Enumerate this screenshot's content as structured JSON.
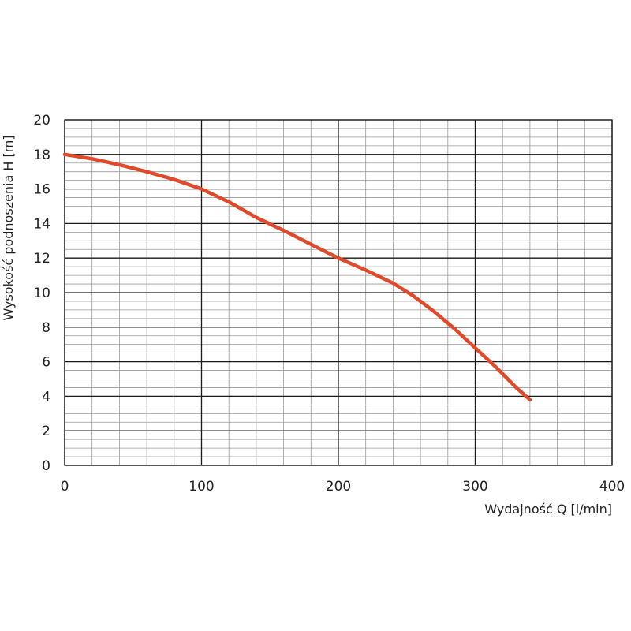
{
  "chart_data": {
    "type": "line",
    "xlabel": "Wydajność Q [l/min]",
    "ylabel": "Wysokość podnoszenia H [m]",
    "xlim": [
      0,
      400
    ],
    "ylim": [
      0,
      20
    ],
    "x_ticks": [
      "0",
      "100",
      "200",
      "300",
      "400"
    ],
    "y_ticks": [
      "0",
      "2",
      "4",
      "6",
      "8",
      "10",
      "12",
      "14",
      "16",
      "18",
      "20"
    ],
    "x_minor_step": 20,
    "y_minor_step": 0.5,
    "grid": true,
    "legend": false,
    "series": [
      {
        "color": "#e04a2a",
        "x": [
          0,
          20,
          40,
          60,
          80,
          100,
          120,
          140,
          160,
          180,
          200,
          220,
          240,
          255,
          270,
          285,
          300,
          315,
          330,
          340
        ],
        "y": [
          18.0,
          17.75,
          17.4,
          17.0,
          16.55,
          16.0,
          15.25,
          14.35,
          13.6,
          12.8,
          12.0,
          11.3,
          10.55,
          9.8,
          8.9,
          7.9,
          6.8,
          5.7,
          4.5,
          3.8
        ]
      }
    ]
  }
}
